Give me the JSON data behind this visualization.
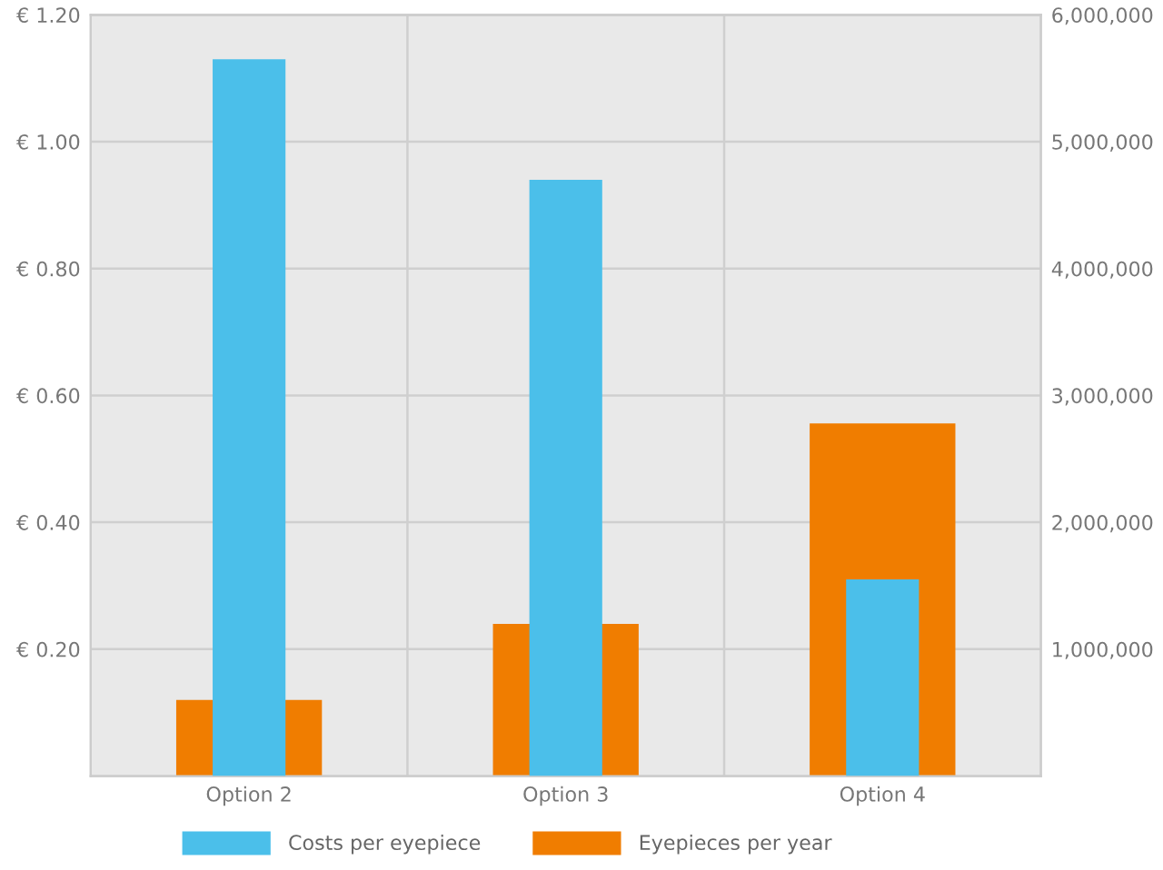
{
  "chart_data": {
    "type": "bar",
    "categories": [
      "Option 2",
      "Option 3",
      "Option 4"
    ],
    "series": [
      {
        "name": "Costs per eyepiece",
        "color": "#4bbfea",
        "values": [
          1.13,
          0.94,
          0.31
        ]
      },
      {
        "name": "Eyepieces per year",
        "color": "#f07d00",
        "values": [
          600000,
          1200000,
          2780000
        ],
        "axis": "y2"
      }
    ],
    "ylim": [
      0,
      1.2
    ],
    "yticks": [
      {
        "value": 0.2,
        "label": "€ 0.20"
      },
      {
        "value": 0.4,
        "label": "€ 0.40"
      },
      {
        "value": 0.6,
        "label": "€ 0.60"
      },
      {
        "value": 0.8,
        "label": "€ 0.80"
      },
      {
        "value": 1.0,
        "label": "€ 1.00"
      },
      {
        "value": 1.2,
        "label": "€ 1.20"
      }
    ],
    "y2lim": [
      0,
      6000000
    ],
    "y2ticks": [
      {
        "value": 1000000,
        "label": "1,000,000"
      },
      {
        "value": 2000000,
        "label": "2,000,000"
      },
      {
        "value": 3000000,
        "label": "3,000,000"
      },
      {
        "value": 4000000,
        "label": "4,000,000"
      },
      {
        "value": 5000000,
        "label": "5,000,000"
      },
      {
        "value": 6000000,
        "label": "6,000,000"
      }
    ],
    "grid": true,
    "legend": "bottom"
  }
}
